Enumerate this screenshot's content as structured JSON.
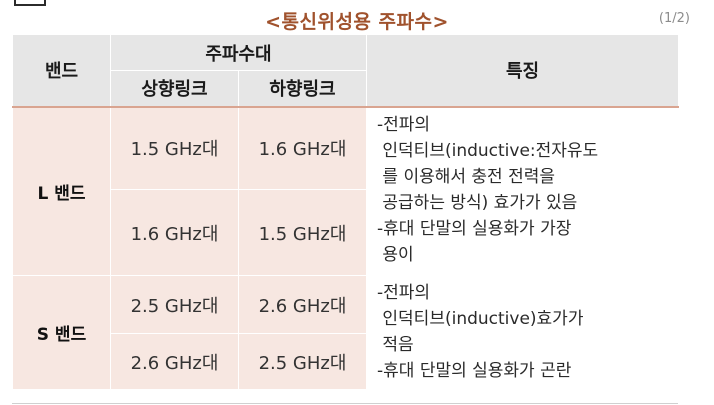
{
  "title": "<통신위성용 주파수>",
  "page_indicator": "(1/2)",
  "table": {
    "headers": {
      "band": "밴드",
      "frequency": "주파수대",
      "uplink": "상향링크",
      "downlink": "하향링크",
      "feature": "특징"
    },
    "rows": [
      {
        "band": "L 밴드",
        "freqs": [
          {
            "up": "1.5 GHz대",
            "down": "1.6 GHz대"
          },
          {
            "up": "1.6 GHz대",
            "down": "1.5 GHz대"
          }
        ],
        "feature_lines": [
          "-전파의",
          " 인덕티브(inductive:전자유도",
          " 를 이용해서 충전 전력을",
          " 공급하는 방식) 효가가 있음",
          "-휴대 단말의 실용화가 가장",
          " 용이"
        ]
      },
      {
        "band": "S 밴드",
        "freqs": [
          {
            "up": "2.5 GHz대",
            "down": "2.6 GHz대"
          },
          {
            "up": "2.6 GHz대",
            "down": "2.5 GHz대"
          }
        ],
        "feature_lines": [
          "-전파의",
          " 인덕티브(inductive)효가가",
          " 적음",
          "-휴대 단말의 실용화가 곤란"
        ]
      }
    ]
  }
}
